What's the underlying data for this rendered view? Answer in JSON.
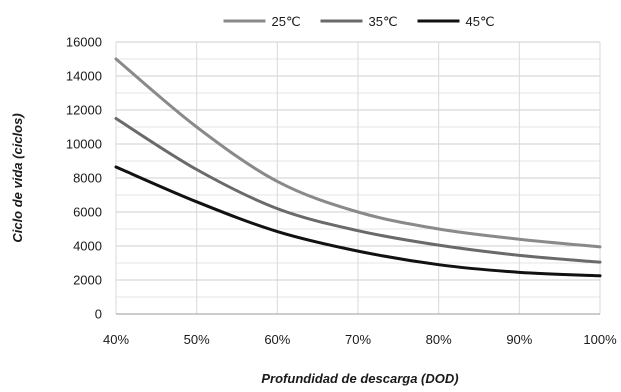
{
  "chart_data": {
    "type": "line",
    "xlabel": "Profundidad de descarga (DOD)",
    "ylabel": "Ciclo de vida (ciclos)",
    "x": [
      40,
      50,
      60,
      70,
      80,
      90,
      100
    ],
    "x_tick_labels": [
      "40%",
      "50%",
      "60%",
      "70%",
      "80%",
      "90%",
      "100%"
    ],
    "y_ticks": [
      0,
      2000,
      4000,
      6000,
      8000,
      10000,
      12000,
      14000,
      16000
    ],
    "ylim": [
      0,
      16000
    ],
    "xlim": [
      40,
      100
    ],
    "grid": "horizontal",
    "legend_position": "top",
    "series": [
      {
        "name": "25℃",
        "color": "#8a8a8a",
        "values": [
          15000,
          11000,
          7800,
          6000,
          5000,
          4400,
          3950
        ]
      },
      {
        "name": "35℃",
        "color": "#6a6a6a",
        "values": [
          11500,
          8500,
          6200,
          4900,
          4050,
          3450,
          3050
        ]
      },
      {
        "name": "45℃",
        "color": "#111111",
        "values": [
          8650,
          6600,
          4850,
          3700,
          2900,
          2450,
          2250
        ]
      }
    ]
  }
}
